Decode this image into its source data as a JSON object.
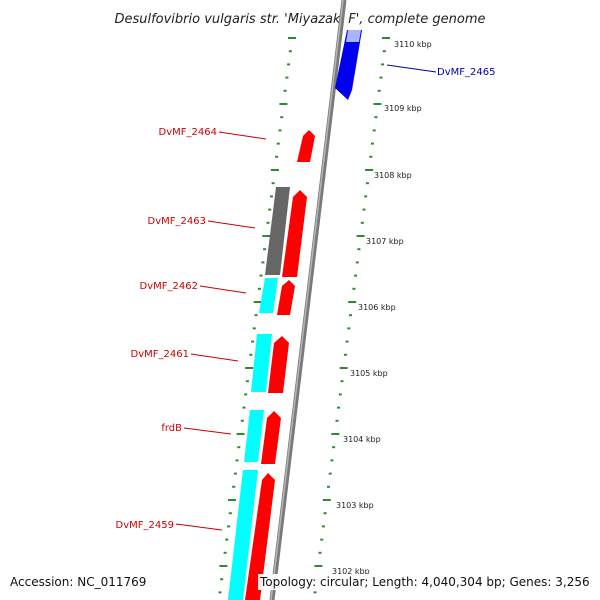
{
  "title": "Desulfovibrio vulgaris str. 'Miyazaki F', complete genome",
  "accession": "Accession: NC_011769",
  "topology": "Topology: circular; Length: 4,040,304 bp; Genes: 3,256",
  "colors": {
    "forward_gene": "#ff0000",
    "reverse_gene": "#00ffff",
    "other_feature": "#666666",
    "highlight_gene": "#0000ff",
    "tick": "#2e8b2e",
    "backbone": "#888888",
    "label_red": "#cc0000",
    "label_blue": "#0000aa"
  },
  "scale_labels": [
    "3110 kbp",
    "3109 kbp",
    "3108 kbp",
    "3107 kbp",
    "3106 kbp",
    "3105 kbp",
    "3104 kbp",
    "3103 kbp",
    "3102 kbp"
  ],
  "gene_labels": [
    "DvMF_2465",
    "DvMF_2464",
    "DvMF_2463",
    "DvMF_2462",
    "DvMF_2461",
    "frdB",
    "DvMF_2459"
  ]
}
